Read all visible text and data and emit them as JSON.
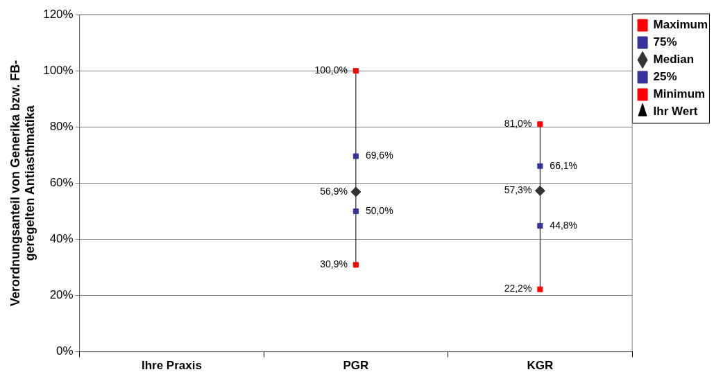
{
  "chart_data": {
    "type": "scatter",
    "ylabel": "Verordnungsanteil von Generika bzw. FB-\ngeregelten Antiasthmatika",
    "categories": [
      "Ihre Praxis",
      "PGR",
      "KGR"
    ],
    "ylim": [
      0,
      120
    ],
    "yticks": [
      {
        "value": 0,
        "label": "0%"
      },
      {
        "value": 20,
        "label": "20%"
      },
      {
        "value": 40,
        "label": "40%"
      },
      {
        "value": 60,
        "label": "60%"
      },
      {
        "value": 80,
        "label": "80%"
      },
      {
        "value": 100,
        "label": "100%"
      },
      {
        "value": 120,
        "label": "120%"
      }
    ],
    "grid": "y",
    "legend": "right",
    "series": [
      {
        "name": "Maximum",
        "color": "#ff0000",
        "marker": "square",
        "values": [
          null,
          100,
          81
        ],
        "value_labels": [
          null,
          "100,0%",
          "81,0%"
        ]
      },
      {
        "name": "75%",
        "color": "#333399",
        "marker": "square",
        "values": [
          null,
          69.6,
          66.1
        ],
        "value_labels": [
          null,
          "69,6%",
          "66,1%"
        ]
      },
      {
        "name": "Median",
        "color": "#333333",
        "marker": "diamond",
        "values": [
          null,
          56.9,
          57.3
        ],
        "value_labels": [
          null,
          "56,9%",
          "57,3%"
        ]
      },
      {
        "name": "25%",
        "color": "#333399",
        "marker": "square",
        "values": [
          null,
          50,
          44.8
        ],
        "value_labels": [
          null,
          "50,0%",
          "44,8%"
        ]
      },
      {
        "name": "Minimum",
        "color": "#ff0000",
        "marker": "square",
        "values": [
          null,
          30.9,
          22.2
        ],
        "value_labels": [
          null,
          "30,9%",
          "22,2%"
        ]
      },
      {
        "name": "Ihr Wert",
        "color": "#000000",
        "marker": "triangle",
        "values": [
          null,
          null,
          null
        ]
      }
    ]
  }
}
